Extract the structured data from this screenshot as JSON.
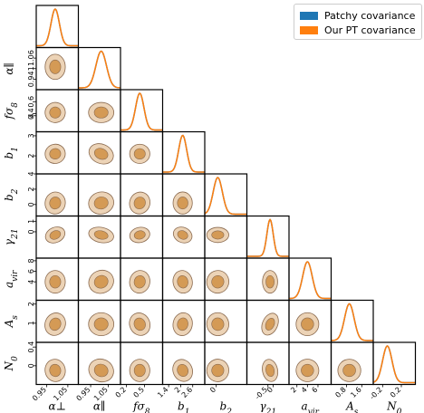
{
  "chart_data": {
    "type": "corner",
    "parameters": [
      {
        "symbol": "α⊥",
        "sub": "",
        "range": [
          0.9,
          1.1
        ],
        "ticks": [
          0.95,
          1.05
        ],
        "mean": 0.99,
        "sd": 0.02
      },
      {
        "symbol": "α∥",
        "sub": "",
        "range": [
          0.88,
          1.12
        ],
        "ticks": [
          0.95,
          1.05
        ],
        "mean": 1.01,
        "sd": 0.03
      },
      {
        "symbol": "fσ",
        "sub": "8",
        "range": [
          0.1,
          0.8
        ],
        "ticks": [
          0.2,
          0.5
        ],
        "mean": 0.42,
        "sd": 0.07
      },
      {
        "symbol": "b",
        "sub": "1",
        "range": [
          1.1,
          3.2
        ],
        "ticks": [
          1.4,
          2.0,
          2.6
        ],
        "mean": 2.1,
        "sd": 0.2
      },
      {
        "symbol": "b",
        "sub": "2",
        "range": [
          -1.5,
          4.0
        ],
        "ticks": [
          0
        ],
        "mean": 0.2,
        "sd": 0.6
      },
      {
        "symbol": "γ",
        "sub": "21",
        "range": [
          -2.5,
          1.5
        ],
        "ticks": [
          -0.5,
          0.0
        ],
        "mean": -0.3,
        "sd": 0.3
      },
      {
        "symbol": "a",
        "sub": "vir",
        "range": [
          0.5,
          8.5
        ],
        "ticks": [
          2,
          4,
          6
        ],
        "mean": 4.0,
        "sd": 0.9
      },
      {
        "symbol": "A",
        "sub": "s",
        "range": [
          0.0,
          2.2
        ],
        "ticks": [
          0.8,
          1.6
        ],
        "mean": 0.95,
        "sd": 0.25
      },
      {
        "symbol": "N",
        "sub": "0",
        "range": [
          -0.4,
          0.5
        ],
        "ticks": [
          -0.2,
          0.2
        ],
        "mean": -0.1,
        "sd": 0.1
      }
    ],
    "ylabel_ticks": {
      "1": [
        0.94,
        1.0,
        1.06
      ],
      "2": [
        0.4,
        0.6
      ],
      "3": [
        2,
        3,
        4
      ],
      "4": [
        0,
        2,
        4
      ],
      "5": [
        0,
        1
      ],
      "6": [
        4,
        6,
        8
      ],
      "7": [
        1,
        2
      ],
      "8": [
        0.0,
        0.4
      ]
    },
    "series": [
      {
        "name": "Patchy covariance",
        "color": "#1f77b4"
      },
      {
        "name": "Our PT covariance",
        "color": "#ff7f0e"
      }
    ],
    "contour_colors": {
      "inner": "#d49a55",
      "outer": "#ecd3b6",
      "edge": "#8a6a4f"
    }
  }
}
